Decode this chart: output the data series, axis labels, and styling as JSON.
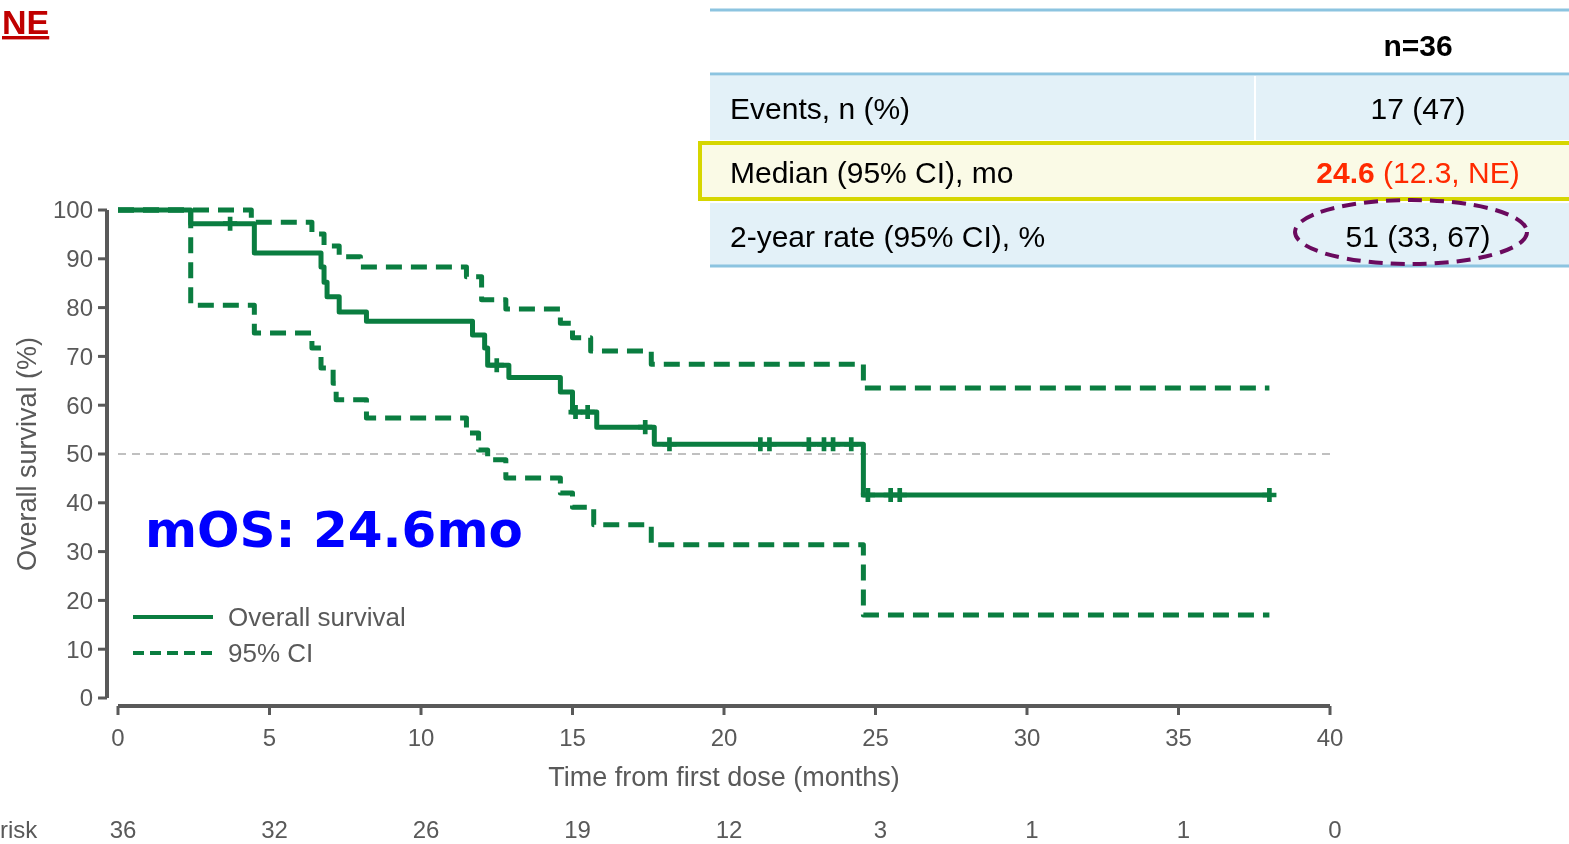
{
  "chart_data": {
    "type": "step",
    "xlabel": "Time from first dose (months)",
    "ylabel": "Overall survival (%)",
    "xlim": [
      0,
      40
    ],
    "ylim": [
      0,
      100
    ],
    "xticks": [
      0,
      5,
      10,
      15,
      20,
      25,
      30,
      35,
      40
    ],
    "yticks": [
      0,
      10,
      20,
      30,
      40,
      50,
      60,
      70,
      80,
      90,
      100
    ],
    "legend": "bottom left",
    "series": [
      {
        "name": "Overall survival",
        "color": "#0a7d40",
        "line_style": "solid",
        "x": [
          0,
          2.4,
          4.5,
          6.7,
          6.8,
          6.9,
          7.3,
          8.2,
          11.7,
          12.1,
          12.2,
          12.9,
          14.6,
          15.0,
          15.8,
          17.7,
          24.6,
          38.0
        ],
        "values": [
          100,
          97.2,
          91.2,
          88.3,
          85.2,
          82.2,
          79.1,
          77.2,
          74.4,
          71.7,
          68.2,
          65.7,
          62.7,
          58.6,
          55.5,
          52.0,
          41.6,
          41.6
        ]
      },
      {
        "name": "95% CI",
        "color": "#0a7d40",
        "line_style": "dashed",
        "x": [
          0,
          4.4,
          6.4,
          6.8,
          7.3,
          8.0,
          11.5,
          12.0,
          12.8,
          14.6,
          15.0,
          15.6,
          17.6,
          24.6,
          38.0
        ],
        "values": [
          100,
          97.5,
          95.1,
          92.6,
          90.4,
          88.3,
          86.3,
          81.6,
          79.7,
          76.8,
          73.8,
          71.1,
          68.4,
          63.5,
          63.5
        ]
      },
      {
        "color": "#0a7d40",
        "line_style": "dashed",
        "x": [
          0,
          2.4,
          4.5,
          6.4,
          6.7,
          7.1,
          7.2,
          8.2,
          11.5,
          11.9,
          12.2,
          12.8,
          14.6,
          15.0,
          15.7,
          17.6,
          24.6,
          38.0
        ],
        "values": [
          100,
          80.5,
          74.8,
          71.7,
          67.6,
          64.5,
          61.1,
          57.4,
          54.3,
          50.8,
          48.8,
          45.1,
          42.0,
          39.1,
          35.5,
          31.4,
          17.0,
          17.0
        ]
      },
      {
        "type": "scatter",
        "marker": "cross",
        "color": "#0a7d40",
        "x": [
          3.7,
          12.5,
          15.1,
          15.5,
          17.4,
          18.2,
          21.2,
          21.5,
          22.8,
          23.3,
          23.6,
          24.2,
          24.75,
          25.5,
          25.8,
          38.0
        ],
        "values": [
          97.2,
          68.2,
          58.6,
          58.6,
          55.5,
          52.0,
          52.0,
          52.0,
          52.0,
          52.0,
          52.0,
          52.0,
          41.6,
          41.6,
          41.6,
          41.6
        ]
      }
    ],
    "ref_lines": [
      {
        "axis": "y",
        "value": 50,
        "color": "#c0c0c0",
        "line_style": "dashed"
      }
    ],
    "annotations": [
      "NE",
      "mOS: 24.6mo",
      "n=36",
      "Events, n (%)",
      "17 (47)",
      "Median (95% CI), mo",
      "24.6 (12.3, NE)",
      "2-year rate (95% CI), %",
      "51 (33, 67)",
      "risk",
      "36",
      "32",
      "26",
      "19",
      "12",
      "3",
      "1",
      "1",
      "0"
    ]
  }
}
